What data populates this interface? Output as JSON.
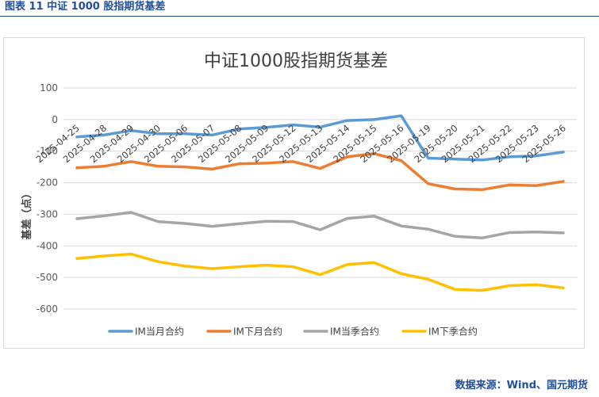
{
  "figure_caption": "图表 11  中证 1000 股指期货基差",
  "source_note": "数据来源：Wind、国元期货",
  "colors": {
    "IM当月合约": "#5b9bd5",
    "IM下月合约": "#ed7d31",
    "IM当季合约": "#a5a5a5",
    "IM下季合约": "#ffc000",
    "caption": "#1f4e9c",
    "grid": "#d9d9d9",
    "axis_text": "#595959"
  },
  "chart_data": {
    "type": "line",
    "title": "中证1000股指期货基差",
    "xlabel": "",
    "ylabel": "基差（点）",
    "ylim": [
      -600,
      100
    ],
    "yticks": [
      100,
      0,
      -100,
      -200,
      -300,
      -400,
      -500,
      -600
    ],
    "grid": true,
    "legend_position": "bottom",
    "categories": [
      "2025-04-25",
      "2025-04-28",
      "2025-04-29",
      "2025-04-30",
      "2025-05-06",
      "2025-05-07",
      "2025-05-08",
      "2025-05-09",
      "2025-05-12",
      "2025-05-13",
      "2025-05-14",
      "2025-05-15",
      "2025-05-16",
      "2025-05-19",
      "2025-05-20",
      "2025-05-21",
      "2025-05-22",
      "2025-05-23",
      "2025-05-26"
    ],
    "series": [
      {
        "name": "IM当月合约",
        "values": [
          -55,
          -49,
          -35,
          -45,
          -45,
          -49,
          -30,
          -25,
          -17,
          -24,
          -3,
          0,
          12,
          -122,
          -125,
          -128,
          -118,
          -115,
          -103
        ]
      },
      {
        "name": "IM下月合约",
        "values": [
          -153,
          -148,
          -133,
          -148,
          -150,
          -157,
          -140,
          -138,
          -133,
          -155,
          -118,
          -108,
          -130,
          -203,
          -220,
          -222,
          -207,
          -209,
          -196
        ]
      },
      {
        "name": "IM当季合约",
        "values": [
          -314,
          -305,
          -294,
          -323,
          -329,
          -338,
          -330,
          -322,
          -323,
          -349,
          -313,
          -306,
          -337,
          -347,
          -370,
          -375,
          -358,
          -356,
          -359
        ]
      },
      {
        "name": "IM下季合约",
        "values": [
          -440,
          -432,
          -426,
          -450,
          -464,
          -472,
          -466,
          -461,
          -466,
          -491,
          -459,
          -453,
          -488,
          -506,
          -538,
          -541,
          -526,
          -523,
          -533
        ]
      }
    ]
  }
}
